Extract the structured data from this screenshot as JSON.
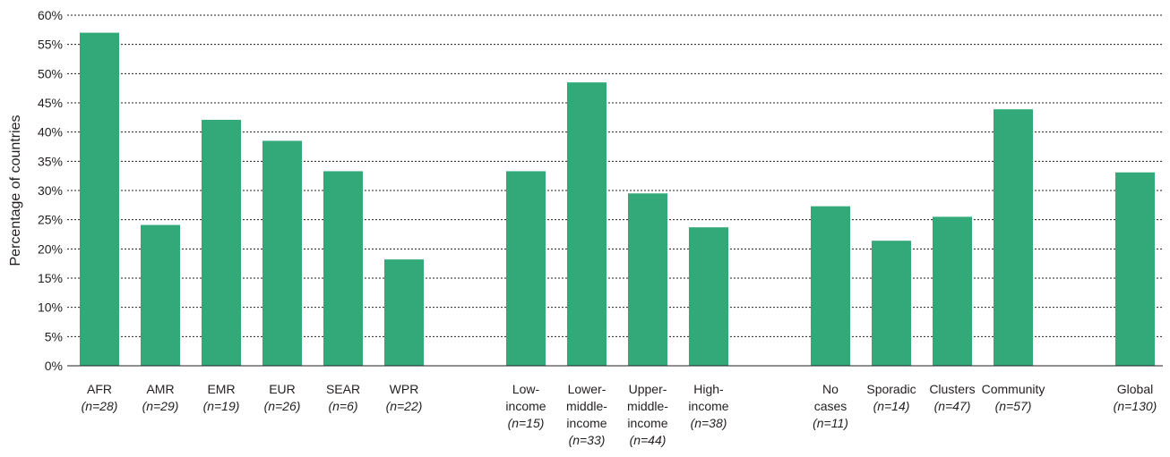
{
  "chart_data": {
    "type": "bar",
    "ylabel": "Percentage of countries",
    "ylim": [
      0,
      60
    ],
    "y_ticks": [
      0,
      5,
      10,
      15,
      20,
      25,
      30,
      35,
      40,
      45,
      50,
      55,
      60
    ],
    "y_tick_labels": [
      "0%",
      "5%",
      "10%",
      "15%",
      "20%",
      "25%",
      "30%",
      "35%",
      "40%",
      "45%",
      "50%",
      "55%",
      "60%"
    ],
    "grid": true,
    "bar_color": "#33a97a",
    "categories": [
      {
        "label": [
          "AFR"
        ],
        "n": "(n=28)",
        "value": 57.0,
        "group": 0
      },
      {
        "label": [
          "AMR"
        ],
        "n": "(n=29)",
        "value": 24.1,
        "group": 0
      },
      {
        "label": [
          "EMR"
        ],
        "n": "(n=19)",
        "value": 42.1,
        "group": 0
      },
      {
        "label": [
          "EUR"
        ],
        "n": "(n=26)",
        "value": 38.5,
        "group": 0
      },
      {
        "label": [
          "SEAR"
        ],
        "n": "(n=6)",
        "value": 33.3,
        "group": 0
      },
      {
        "label": [
          "WPR"
        ],
        "n": "(n=22)",
        "value": 18.2,
        "group": 0
      },
      {
        "label": [
          "Low-",
          "income"
        ],
        "n": "(n=15)",
        "value": 33.3,
        "group": 1
      },
      {
        "label": [
          "Lower-",
          "middle-",
          "income"
        ],
        "n": "(n=33)",
        "value": 48.5,
        "group": 1
      },
      {
        "label": [
          "Upper-",
          "middle-",
          "income"
        ],
        "n": "(n=44)",
        "value": 29.5,
        "group": 1
      },
      {
        "label": [
          "High-",
          "income"
        ],
        "n": "(n=38)",
        "value": 23.7,
        "group": 1
      },
      {
        "label": [
          "No",
          "cases"
        ],
        "n": "(n=11)",
        "value": 27.3,
        "group": 2
      },
      {
        "label": [
          "Sporadic"
        ],
        "n": "(n=14)",
        "value": 21.4,
        "group": 2
      },
      {
        "label": [
          "Clusters"
        ],
        "n": "(n=47)",
        "value": 25.5,
        "group": 2
      },
      {
        "label": [
          "Community"
        ],
        "n": "(n=57)",
        "value": 43.9,
        "group": 2
      },
      {
        "label": [
          "Global"
        ],
        "n": "(n=130)",
        "value": 33.1,
        "group": 3
      }
    ]
  }
}
